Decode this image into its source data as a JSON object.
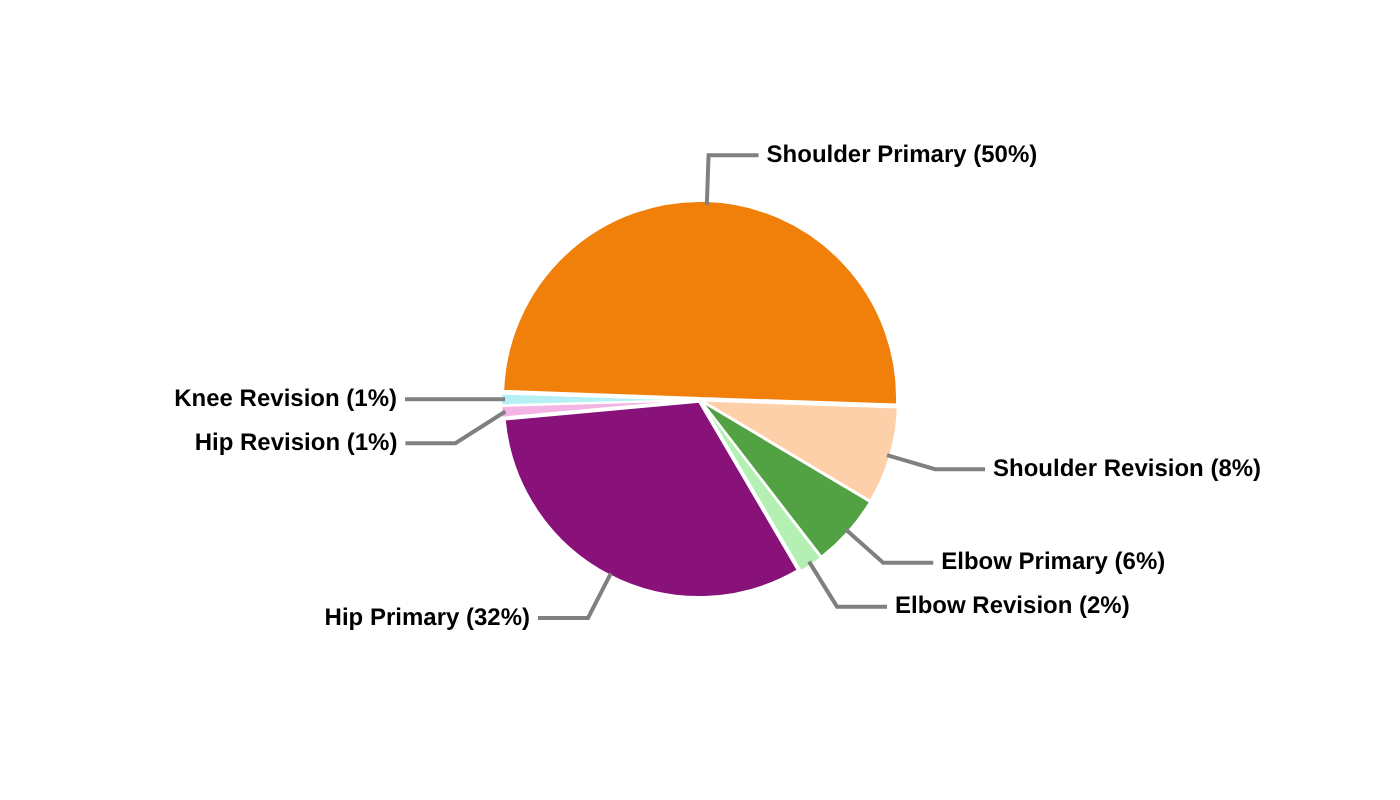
{
  "chart_data": {
    "type": "pie",
    "categories": [
      "Shoulder Primary (50%)",
      "Shoulder Revision (8%)",
      "Elbow Primary (6%)",
      "Elbow Revision (2%)",
      "Hip Primary (32%)",
      "Hip Revision (1%)",
      "Knee Revision (1%)"
    ],
    "values": [
      50,
      8,
      6,
      2,
      32,
      1,
      1
    ],
    "colors": [
      "#f0800a",
      "#fdd0aa",
      "#52a244",
      "#b4f0b4",
      "#88127a",
      "#f4b4e4",
      "#b4f0f4"
    ],
    "legend": false
  }
}
